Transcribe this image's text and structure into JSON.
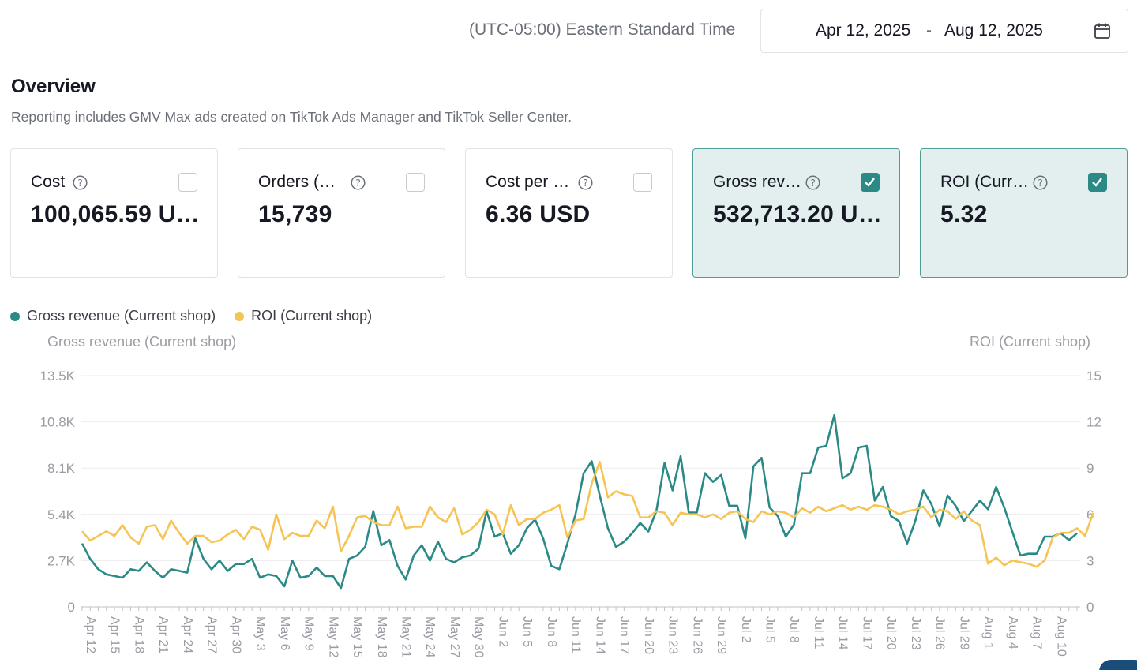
{
  "header": {
    "timezone": "(UTC-05:00) Eastern Standard Time",
    "date_start": "Apr 12, 2025",
    "date_separator": "-",
    "date_end": "Aug 12, 2025",
    "calendar_icon": "calendar-icon"
  },
  "overview": {
    "title": "Overview",
    "description": "Reporting includes GMV Max ads created on TikTok Ads Manager and TikTok Seller Center."
  },
  "metrics": [
    {
      "label": "Cost",
      "value": "100,065.59 U…",
      "checked": false
    },
    {
      "label": "Orders (…",
      "value": "15,739",
      "checked": false
    },
    {
      "label": "Cost per …",
      "value": "6.36 USD",
      "checked": false
    },
    {
      "label": "Gross rev…",
      "value": "532,713.20 U…",
      "checked": true
    },
    {
      "label": "ROI (Curr…",
      "value": "5.32",
      "checked": true
    }
  ],
  "colors": {
    "gross_revenue": "#2b8a86",
    "roi": "#f6c455",
    "selected_card_bg": "#e3efee",
    "checkbox_checked": "#2b8a86"
  },
  "chart_data": {
    "type": "line",
    "left_axis_title": "Gross revenue (Current shop)",
    "right_axis_title": "ROI (Current shop)",
    "left_ticks": [
      "0",
      "2.7K",
      "5.4K",
      "8.1K",
      "10.8K",
      "13.5K"
    ],
    "right_ticks": [
      "0",
      "3",
      "6",
      "9",
      "12",
      "15"
    ],
    "ylim_left": [
      0,
      13500
    ],
    "ylim_right": [
      0,
      15
    ],
    "grid": true,
    "legend": "top-left",
    "x_labels": [
      "Apr 12",
      "Apr 15",
      "Apr 18",
      "Apr 21",
      "Apr 24",
      "Apr 27",
      "Apr 30",
      "May 3",
      "May 6",
      "May 9",
      "May 12",
      "May 15",
      "May 18",
      "May 21",
      "May 24",
      "May 27",
      "May 30",
      "Jun 2",
      "Jun 5",
      "Jun 8",
      "Jun 11",
      "Jun 14",
      "Jun 17",
      "Jun 20",
      "Jun 23",
      "Jun 26",
      "Jun 29",
      "Jul 2",
      "Jul 5",
      "Jul 8",
      "Jul 11",
      "Jul 14",
      "Jul 17",
      "Jul 20",
      "Jul 23",
      "Jul 26",
      "Jul 29",
      "Aug 1",
      "Aug 4",
      "Aug 7",
      "Aug 10"
    ],
    "series": [
      {
        "name": "Gross revenue (Current shop)",
        "axis": "left",
        "values": [
          3700,
          2800,
          2200,
          1900,
          1800,
          1700,
          2200,
          2100,
          2600,
          2100,
          1700,
          2200,
          2100,
          2000,
          4000,
          2800,
          2200,
          2700,
          2100,
          2500,
          2500,
          2800,
          1700,
          1900,
          1800,
          1200,
          2700,
          1700,
          1800,
          2300,
          1800,
          1800,
          1100,
          2800,
          3000,
          3500,
          5600,
          3600,
          3900,
          2400,
          1600,
          3000,
          3600,
          2700,
          3800,
          2800,
          2600,
          2900,
          3000,
          3400,
          5600,
          4100,
          4300,
          3100,
          3600,
          4600,
          5100,
          4000,
          2400,
          2200,
          3700,
          5400,
          7800,
          8500,
          6500,
          4600,
          3500,
          3800,
          4300,
          4900,
          4400,
          5600,
          8400,
          6800,
          8800,
          5500,
          5500,
          7800,
          7300,
          7700,
          5900,
          5900,
          4000,
          8200,
          8700,
          5800,
          5300,
          4100,
          4800,
          7800,
          7800,
          9300,
          9400,
          11200,
          7500,
          7800,
          9300,
          9400,
          6200,
          7000,
          5300,
          5000,
          3700,
          5000,
          6800,
          6000,
          4700,
          6500,
          5900,
          5000,
          5600,
          6200,
          5700,
          7000,
          5800,
          4400,
          3000,
          3100,
          3100,
          4100,
          4100,
          4300,
          3900,
          4300
        ]
      },
      {
        "name": "ROI (Current shop)",
        "axis": "right",
        "values": [
          4.9,
          4.3,
          4.6,
          4.9,
          4.6,
          5.3,
          4.5,
          4.1,
          5.2,
          5.3,
          4.4,
          5.6,
          4.8,
          4.1,
          4.6,
          4.6,
          4.2,
          4.3,
          4.7,
          5.0,
          4.4,
          5.2,
          5.0,
          3.7,
          6.0,
          4.4,
          4.8,
          4.6,
          4.6,
          5.6,
          5.1,
          6.5,
          3.6,
          4.6,
          5.8,
          5.9,
          5.5,
          5.3,
          5.3,
          6.5,
          5.1,
          5.2,
          5.2,
          6.5,
          5.8,
          5.5,
          6.4,
          4.7,
          5.0,
          5.5,
          6.3,
          6.0,
          4.7,
          6.6,
          5.3,
          5.7,
          5.7,
          6.1,
          6.3,
          6.6,
          4.5,
          5.6,
          5.7,
          8.0,
          9.4,
          7.1,
          7.5,
          7.3,
          7.2,
          5.8,
          5.8,
          6.2,
          6.1,
          5.3,
          6.1,
          6.0,
          6.0,
          5.8,
          6.0,
          5.7,
          6.1,
          6.2,
          5.7,
          5.5,
          6.2,
          6.0,
          6.2,
          6.1,
          5.8,
          6.4,
          6.1,
          6.5,
          6.2,
          6.4,
          6.6,
          6.3,
          6.5,
          6.3,
          6.6,
          6.5,
          6.3,
          6.0,
          6.2,
          6.3,
          6.5,
          5.8,
          6.3,
          6.2,
          5.7,
          6.2,
          5.6,
          5.3,
          2.8,
          3.2,
          2.7,
          3.0,
          2.9,
          2.8,
          2.6,
          3.0,
          4.5,
          4.8,
          4.8,
          5.1,
          4.6,
          6.1
        ]
      }
    ]
  }
}
